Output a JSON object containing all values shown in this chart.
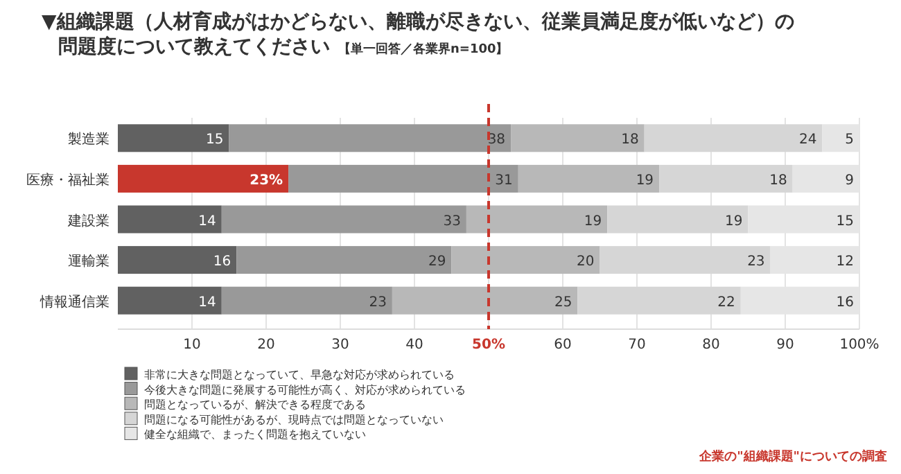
{
  "chart_data": {
    "type": "bar",
    "orientation": "horizontal",
    "stacked": true,
    "title": "▼組織課題（人材育成がはかどらない、離職が尽きない、従業員満足度が低いなど）の問題度について教えてください",
    "subtitle": "【単一回答／各業界n=100】",
    "categories": [
      "製造業",
      "医療・福祉業",
      "建設業",
      "運輸業",
      "情報通信業"
    ],
    "series": [
      {
        "name": "非常に大きな問題となっていて、早急な対応が求められている",
        "color": "#616161",
        "colors": [
          "#616161",
          "#c8372d",
          "#616161",
          "#616161",
          "#616161"
        ],
        "values": [
          15,
          23,
          14,
          16,
          14
        ],
        "value_labels": [
          "15",
          "23%",
          "14",
          "16",
          "14"
        ]
      },
      {
        "name": "今後大きな問題に発展する可能性が高く、対応が求められている",
        "color": "#999999",
        "values": [
          38,
          31,
          33,
          29,
          23
        ],
        "value_labels": [
          "38",
          "31",
          "33",
          "29",
          "23"
        ]
      },
      {
        "name": "問題となっているが、解決できる程度である",
        "color": "#b8b8b8",
        "values": [
          18,
          19,
          19,
          20,
          25
        ],
        "value_labels": [
          "18",
          "19",
          "19",
          "20",
          "25"
        ]
      },
      {
        "name": "問題になる可能性があるが、現時点では問題となっていない",
        "color": "#d6d6d6",
        "values": [
          24,
          18,
          19,
          23,
          22
        ],
        "value_labels": [
          "24",
          "18",
          "19",
          "23",
          "22"
        ]
      },
      {
        "name": "健全な組織で、まったく問題を抱えていない",
        "color": "#e6e6e6",
        "values": [
          5,
          9,
          15,
          12,
          16
        ],
        "value_labels": [
          "5",
          "9",
          "15",
          "12",
          "16"
        ]
      }
    ],
    "xlim": [
      0,
      100
    ],
    "xticks": [
      10,
      20,
      30,
      40,
      {
        "value": 50,
        "label": "50%"
      },
      60,
      70,
      80,
      90,
      {
        "value": 100,
        "label": "100%"
      }
    ],
    "grid": "x",
    "legend": "bottom",
    "ref_lines": [
      {
        "axis": "x",
        "value": 50,
        "color": "#c8372d",
        "line_style": "dashed"
      }
    ],
    "annotations": [
      "企業の\"組織課題\"についての調査"
    ]
  }
}
